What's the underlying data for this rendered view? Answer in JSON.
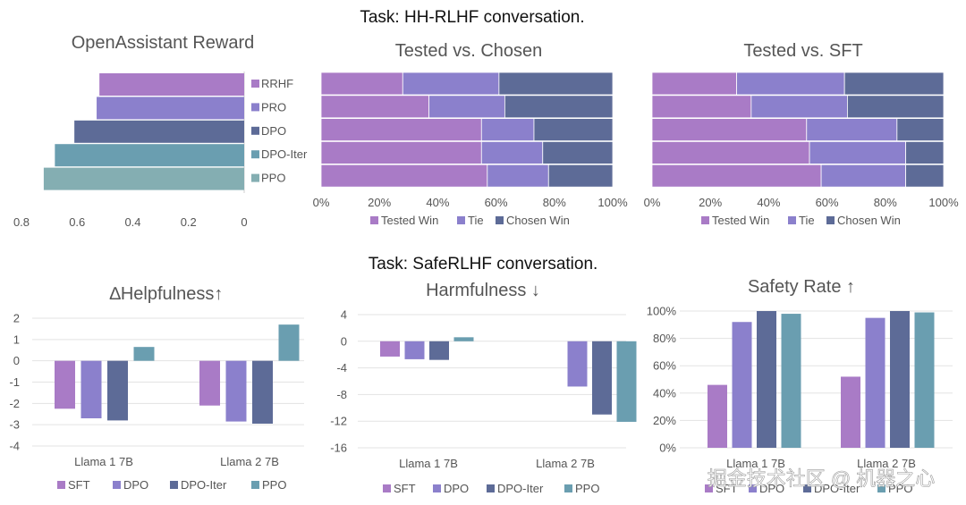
{
  "task_titles": [
    "Task: HH-RLHF conversation.",
    "Task: SafeRLHF conversation."
  ],
  "watermark": "掘金技术社区 @ 机器之心",
  "colors": {
    "SFT": "#a97bc6",
    "DPO": "#8b80cc",
    "DPO-Iter": "#5d6b97",
    "PPO": "#6a9eb0",
    "RRHF": "#a97bc6",
    "PRO": "#8b80cc",
    "OA_DPO": "#5d6b97",
    "OA_DPOIter": "#6a9eb0",
    "OA_PPO": "#84aeb2",
    "Tested Win": "#a97bc6",
    "Tie": "#8b80cc",
    "Chosen Win": "#5d6b97"
  },
  "chart_data": [
    {
      "id": "oa",
      "type": "bar",
      "orientation": "horizontal-reversed",
      "title": "OpenAssistant Reward",
      "categories": [
        "RRHF",
        "PRO",
        "DPO",
        "DPO-Iter",
        "PPO"
      ],
      "values": [
        0.52,
        0.53,
        0.61,
        0.68,
        0.72
      ],
      "xlim": [
        0,
        0.8
      ],
      "xticks": [
        "0.8",
        "0.6",
        "0.4",
        "0.2",
        "0"
      ]
    },
    {
      "id": "tvc",
      "type": "bar",
      "orientation": "horizontal-stacked-100",
      "title": "Tested vs. Chosen",
      "rows": [
        "RRHF",
        "PRO",
        "DPO",
        "DPO-Iter",
        "PPO"
      ],
      "series": [
        {
          "name": "Tested Win",
          "values": [
            28,
            37,
            55,
            55,
            57
          ]
        },
        {
          "name": "Tie",
          "values": [
            33,
            26,
            18,
            21,
            21
          ]
        },
        {
          "name": "Chosen Win",
          "values": [
            39,
            37,
            27,
            24,
            22
          ]
        }
      ],
      "xticks": [
        "0%",
        "20%",
        "40%",
        "60%",
        "80%",
        "100%"
      ]
    },
    {
      "id": "tvs",
      "type": "bar",
      "orientation": "horizontal-stacked-100",
      "title": "Tested vs. SFT",
      "rows": [
        "RRHF",
        "PRO",
        "DPO",
        "DPO-Iter",
        "PPO"
      ],
      "series": [
        {
          "name": "Tested Win",
          "values": [
            29,
            34,
            53,
            54,
            58
          ]
        },
        {
          "name": "Tie",
          "values": [
            37,
            33,
            31,
            33,
            29
          ]
        },
        {
          "name": "Chosen Win",
          "values": [
            34,
            33,
            16,
            13,
            13
          ]
        }
      ],
      "xticks": [
        "0%",
        "20%",
        "40%",
        "60%",
        "80%",
        "100%"
      ]
    },
    {
      "id": "help",
      "type": "bar",
      "title": "∆Helpfulness↑",
      "categories": [
        "Llama 1 7B",
        "Llama 2 7B"
      ],
      "series": [
        {
          "name": "SFT",
          "values": [
            -2.25,
            -2.1
          ]
        },
        {
          "name": "DPO",
          "values": [
            -2.7,
            -2.85
          ]
        },
        {
          "name": "DPO-Iter",
          "values": [
            -2.8,
            -2.95
          ]
        },
        {
          "name": "PPO",
          "values": [
            0.65,
            1.7
          ]
        }
      ],
      "ylim": [
        -4,
        2
      ],
      "yticks": [
        "2",
        "1",
        "0",
        "-1",
        "-2",
        "-3",
        "-4"
      ]
    },
    {
      "id": "harm",
      "type": "bar",
      "title": "Harmfulness ↓",
      "categories": [
        "Llama 1 7B",
        "Llama 2 7B"
      ],
      "series": [
        {
          "name": "SFT",
          "values": [
            -2.3,
            null
          ]
        },
        {
          "name": "DPO",
          "values": [
            -2.7,
            -6.8
          ]
        },
        {
          "name": "DPO-Iter",
          "values": [
            -2.8,
            -11.0
          ]
        },
        {
          "name": "PPO",
          "values": [
            0.6,
            -12.1
          ]
        }
      ],
      "ylim": [
        -16,
        4
      ],
      "yticks": [
        "4",
        "0",
        "-4",
        "-8",
        "-12",
        "-16"
      ]
    },
    {
      "id": "safe",
      "type": "bar",
      "title": "Safety Rate ↑",
      "categories": [
        "Llama 1 7B",
        "Llama 2 7B"
      ],
      "series": [
        {
          "name": "SFT",
          "values": [
            46,
            52
          ]
        },
        {
          "name": "DPO",
          "values": [
            92,
            95
          ]
        },
        {
          "name": "DPO-Iter",
          "values": [
            100,
            100
          ]
        },
        {
          "name": "PPO",
          "values": [
            98,
            99
          ]
        }
      ],
      "ylim": [
        0,
        100
      ],
      "yticks": [
        "100%",
        "80%",
        "60%",
        "40%",
        "20%",
        "0%"
      ]
    }
  ]
}
